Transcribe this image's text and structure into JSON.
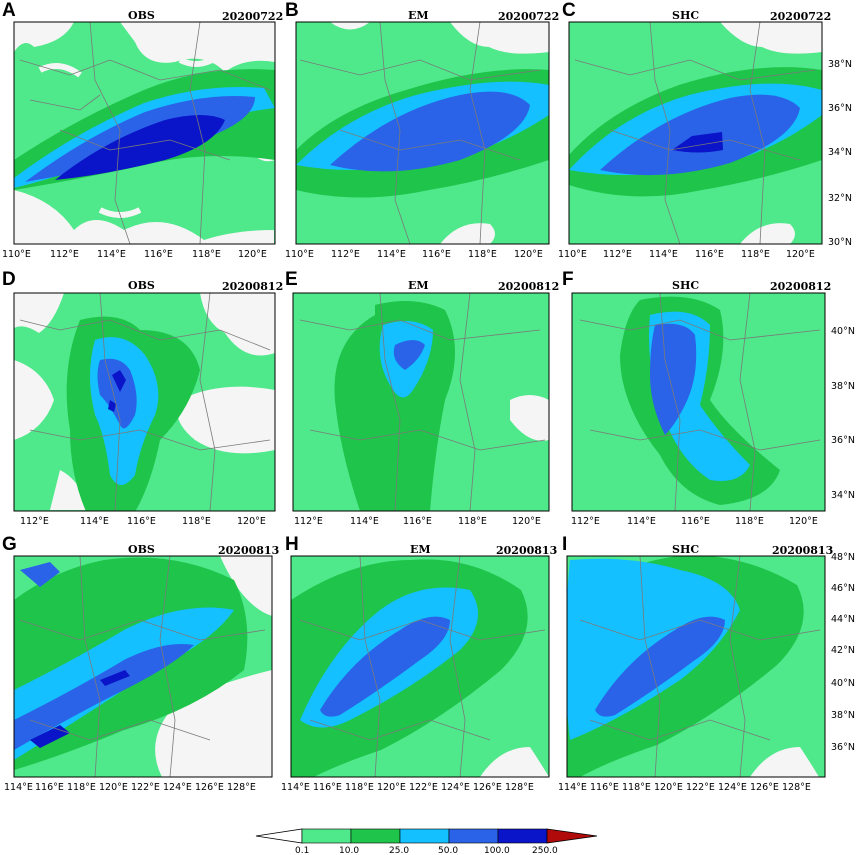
{
  "panels": [
    {
      "id": "A",
      "title": "OBS",
      "date": "20200722",
      "lon": [
        "110°E",
        "112°E",
        "114°E",
        "116°E",
        "118°E",
        "120°E"
      ],
      "lat": []
    },
    {
      "id": "B",
      "title": "EM",
      "date": "20200722",
      "lon": [
        "110°E",
        "112°E",
        "114°E",
        "116°E",
        "118°E",
        "120°E"
      ],
      "lat": []
    },
    {
      "id": "C",
      "title": "SHC",
      "date": "20200722",
      "lon": [
        "110°E",
        "112°E",
        "114°E",
        "116°E",
        "118°E",
        "120°E"
      ],
      "lat": [
        "38°N",
        "36°N",
        "34°N",
        "32°N",
        "30°N"
      ]
    },
    {
      "id": "D",
      "title": "OBS",
      "date": "20200812",
      "lon": [
        "112°E",
        "114°E",
        "116°E",
        "118°E",
        "120°E"
      ],
      "lat": []
    },
    {
      "id": "E",
      "title": "EM",
      "date": "20200812",
      "lon": [
        "112°E",
        "114°E",
        "116°E",
        "118°E",
        "120°E"
      ],
      "lat": []
    },
    {
      "id": "F",
      "title": "SHC",
      "date": "20200812",
      "lon": [
        "112°E",
        "114°E",
        "116°E",
        "118°E",
        "120°E"
      ],
      "lat": [
        "40°N",
        "38°N",
        "36°N",
        "34°N"
      ]
    },
    {
      "id": "G",
      "title": "OBS",
      "date": "20200813",
      "lon": [
        "114°E",
        "116°E",
        "118°E",
        "120°E",
        "122°E",
        "124°E",
        "126°E",
        "128°E"
      ],
      "lat": []
    },
    {
      "id": "H",
      "title": "EM",
      "date": "20200813",
      "lon": [
        "114°E",
        "116°E",
        "118°E",
        "120°E",
        "122°E",
        "124°E",
        "126°E",
        "128°E"
      ],
      "lat": []
    },
    {
      "id": "I",
      "title": "SHC",
      "date": "20200813",
      "lon": [
        "114°E",
        "116°E",
        "118°E",
        "120°E",
        "122°E",
        "124°E",
        "126°E",
        "128°E"
      ],
      "lat": [
        "48°N",
        "46°N",
        "44°N",
        "42°N",
        "40°N",
        "38°N",
        "36°N"
      ]
    }
  ],
  "colorbar": {
    "labels": [
      "0.1",
      "10.0",
      "25.0",
      "50.0",
      "100.0",
      "250.0"
    ],
    "colors": [
      "#ffffff",
      "#4fe88a",
      "#1fc44a",
      "#14c0ff",
      "#2a63e8",
      "#0a14c8",
      "#b00a0a"
    ]
  }
}
